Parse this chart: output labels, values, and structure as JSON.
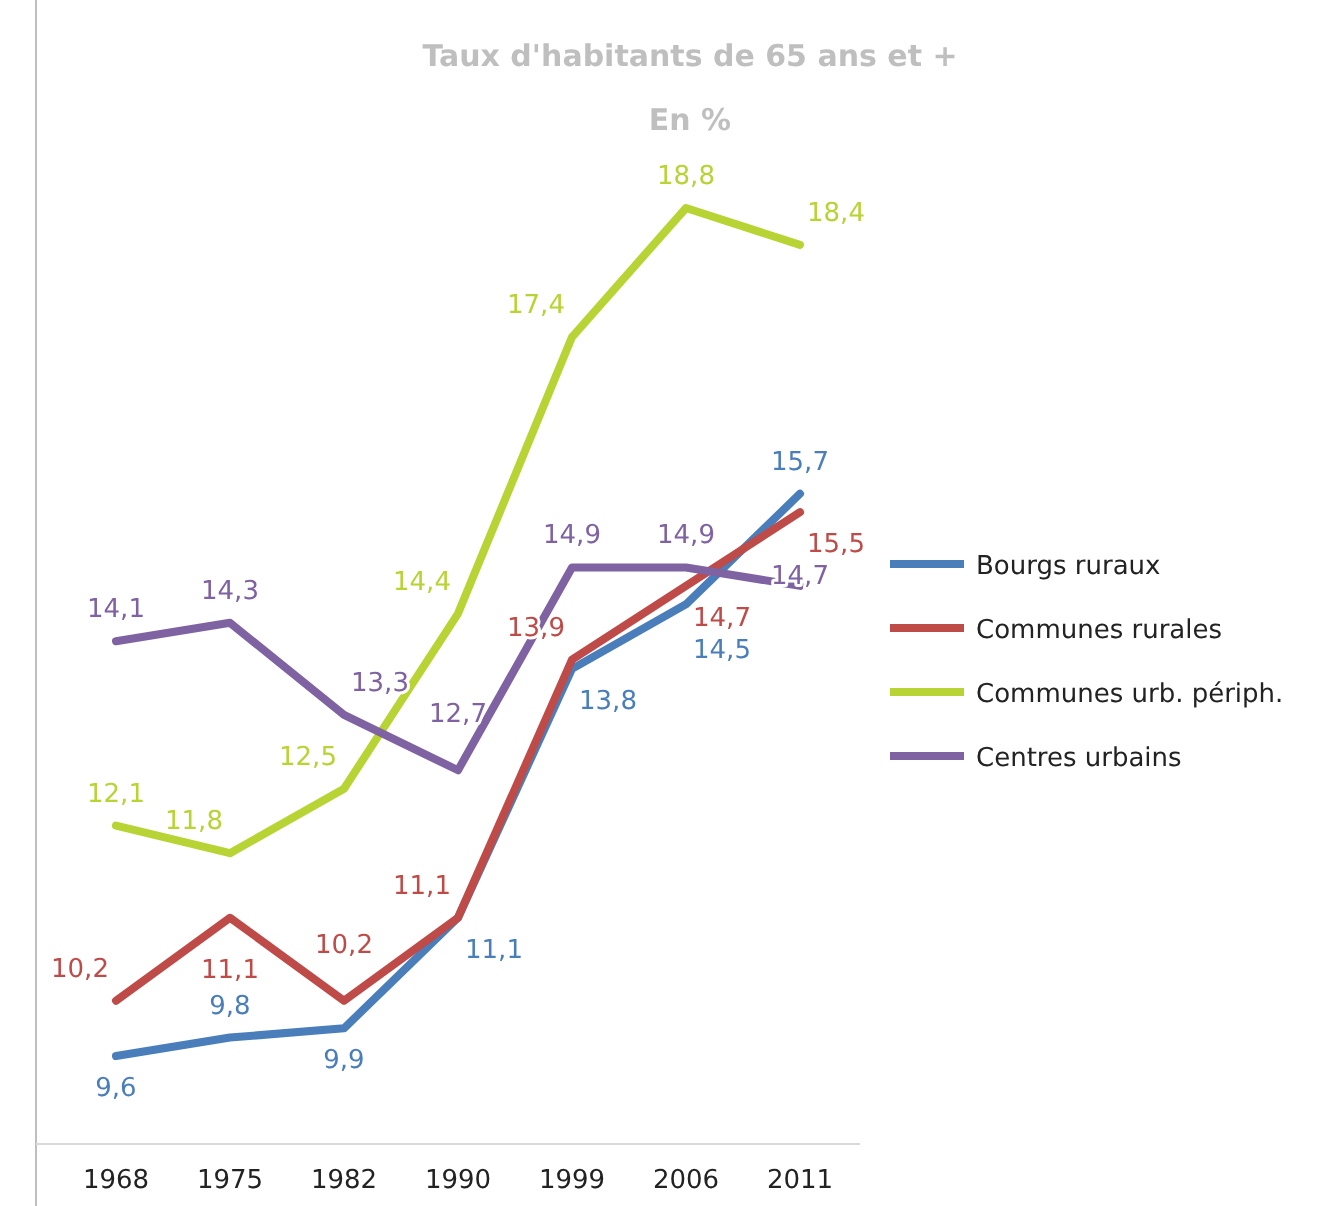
{
  "chart_data": {
    "type": "line",
    "title": "Taux d'habitants de 65 ans et +",
    "subtitle": "En %",
    "categories": [
      "1968",
      "1975",
      "1982",
      "1990",
      "1999",
      "2006",
      "2011"
    ],
    "legend": "right",
    "line_style": "solid",
    "series": [
      {
        "name": "Bourgs ruraux",
        "color": "#4a7ebb",
        "values": [
          9.6,
          9.8,
          9.9,
          11.1,
          13.8,
          14.5,
          15.7
        ],
        "value_labels": [
          "9,6",
          "9,8",
          "9,9",
          "11,1",
          "13,8",
          "14,5",
          "15,7"
        ]
      },
      {
        "name": "Communes rurales",
        "color": "#be4b48",
        "values": [
          10.2,
          11.1,
          10.2,
          11.1,
          13.9,
          14.7,
          15.5
        ],
        "value_labels": [
          "10,2",
          "11,1",
          "10,2",
          "11,1",
          "13,9",
          "14,7",
          "15,5"
        ]
      },
      {
        "name": "Communes urb. périph.",
        "color": "#b8d334",
        "values": [
          12.1,
          11.8,
          12.5,
          14.4,
          17.4,
          18.8,
          18.4
        ],
        "value_labels": [
          "12,1",
          "11,8",
          "12,5",
          "14,4",
          "17,4",
          "18,8",
          "18,4"
        ]
      },
      {
        "name": "Centres urbains",
        "color": "#7f62a1",
        "values": [
          14.1,
          14.3,
          13.3,
          12.7,
          14.9,
          14.9,
          14.7
        ],
        "value_labels": [
          "14,1",
          "14,3",
          "13,3",
          "12,7",
          "14,9",
          "14,9",
          "14,7"
        ]
      }
    ]
  }
}
